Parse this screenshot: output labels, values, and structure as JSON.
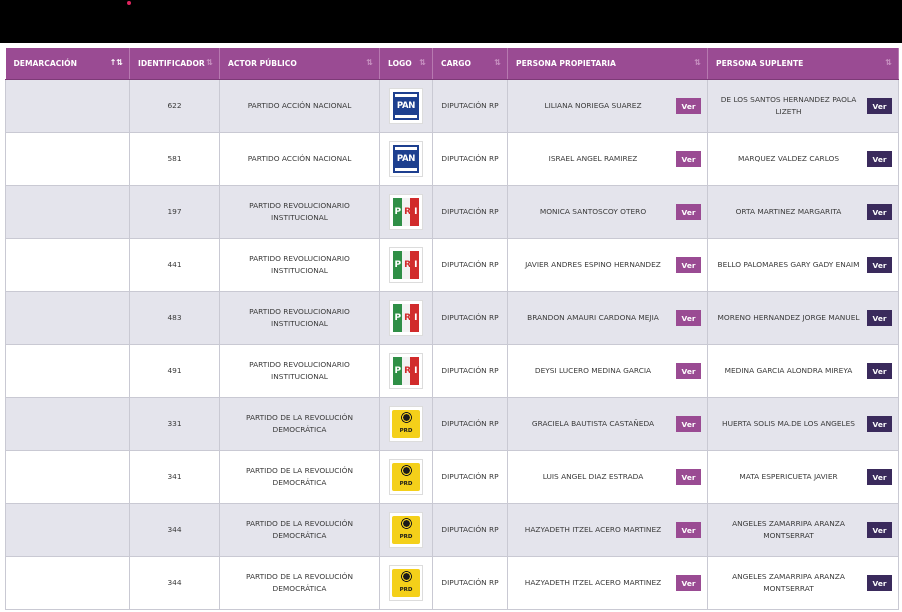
{
  "columns": [
    {
      "label": "DEMARCACIÓN"
    },
    {
      "label": "IDENTIFICADOR"
    },
    {
      "label": "ACTOR PÚBLICO"
    },
    {
      "label": "LOGO"
    },
    {
      "label": "CARGO"
    },
    {
      "label": "PERSONA PROPIETARIA"
    },
    {
      "label": "PERSONA SUPLENTE"
    }
  ],
  "button_label": "Ver",
  "logos": {
    "pan": "PAN",
    "pri": [
      "P",
      "R",
      "I"
    ],
    "prd": "PRD"
  },
  "colors": {
    "header_bg": "#9a4b93",
    "prop_button": "#9a4b93",
    "sup_button": "#3a2a5c",
    "row_alt": "#e4e4ec"
  },
  "rows": [
    {
      "demarcacion": "",
      "id": "622",
      "actor": "PARTIDO ACCIÓN NACIONAL",
      "logo": "pan",
      "cargo": "DIPUTACIÓN RP",
      "propietaria": "LILIANA NORIEGA SUAREZ",
      "suplente": "DE LOS SANTOS HERNANDEZ PAOLA LIZETH"
    },
    {
      "demarcacion": "",
      "id": "581",
      "actor": "PARTIDO ACCIÓN NACIONAL",
      "logo": "pan",
      "cargo": "DIPUTACIÓN RP",
      "propietaria": "ISRAEL ANGEL RAMIREZ",
      "suplente": "MARQUEZ VALDEZ CARLOS"
    },
    {
      "demarcacion": "",
      "id": "197",
      "actor": "PARTIDO REVOLUCIONARIO INSTITUCIONAL",
      "logo": "pri",
      "cargo": "DIPUTACIÓN RP",
      "propietaria": "MONICA SANTOSCOY OTERO",
      "suplente": "ORTA MARTINEZ MARGARITA"
    },
    {
      "demarcacion": "",
      "id": "441",
      "actor": "PARTIDO REVOLUCIONARIO INSTITUCIONAL",
      "logo": "pri",
      "cargo": "DIPUTACIÓN RP",
      "propietaria": "JAVIER ANDRES ESPINO HERNANDEZ",
      "suplente": "BELLO PALOMARES GARY GADY ENAIM"
    },
    {
      "demarcacion": "",
      "id": "483",
      "actor": "PARTIDO REVOLUCIONARIO INSTITUCIONAL",
      "logo": "pri",
      "cargo": "DIPUTACIÓN RP",
      "propietaria": "BRANDON AMAURI CARDONA MEJIA",
      "suplente": "MORENO HERNANDEZ JORGE MANUEL"
    },
    {
      "demarcacion": "",
      "id": "491",
      "actor": "PARTIDO REVOLUCIONARIO INSTITUCIONAL",
      "logo": "pri",
      "cargo": "DIPUTACIÓN RP",
      "propietaria": "DEYSI LUCERO MEDINA GARCIA",
      "suplente": "MEDINA GARCIA ALONDRA MIREYA"
    },
    {
      "demarcacion": "",
      "id": "331",
      "actor": "PARTIDO DE LA REVOLUCIÓN DEMOCRÁTICA",
      "logo": "prd",
      "cargo": "DIPUTACIÓN RP",
      "propietaria": "GRACIELA BAUTISTA CASTAÑEDA",
      "suplente": "HUERTA SOLIS MA.DE LOS ANGELES"
    },
    {
      "demarcacion": "",
      "id": "341",
      "actor": "PARTIDO DE LA REVOLUCIÓN DEMOCRÁTICA",
      "logo": "prd",
      "cargo": "DIPUTACIÓN RP",
      "propietaria": "LUIS ANGEL DIAZ ESTRADA",
      "suplente": "MATA ESPERICUETA JAVIER"
    },
    {
      "demarcacion": "",
      "id": "344",
      "actor": "PARTIDO DE LA REVOLUCIÓN DEMOCRÁTICA",
      "logo": "prd",
      "cargo": "DIPUTACIÓN RP",
      "propietaria": "HAZYADETH ITZEL ACERO MARTINEZ",
      "suplente": "ANGELES ZAMARRIPA ARANZA MONTSERRAT"
    },
    {
      "demarcacion": "",
      "id": "344",
      "actor": "PARTIDO DE LA REVOLUCIÓN DEMOCRÁTICA",
      "logo": "prd",
      "cargo": "DIPUTACIÓN RP",
      "propietaria": "HAZYADETH ITZEL ACERO MARTINEZ",
      "suplente": "ANGELES ZAMARRIPA ARANZA MONTSERRAT"
    }
  ]
}
